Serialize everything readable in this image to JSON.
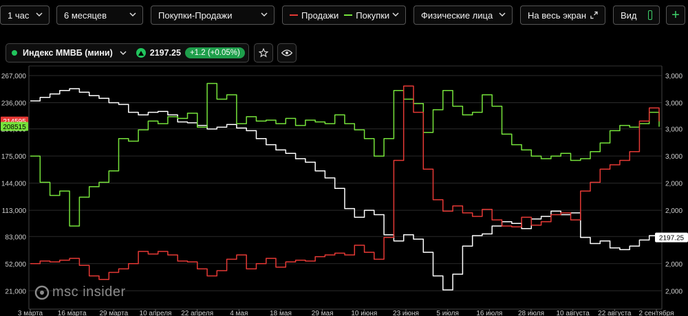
{
  "toolbar": {
    "interval": "1 час",
    "period": "6 месяцев",
    "mode": "Покупки-Продажи",
    "legend_sell": "Продажи",
    "legend_buy": "Покупки",
    "group": "Физические лица",
    "fullscreen": "На весь экран",
    "view": "Вид",
    "add": "+"
  },
  "ticker": {
    "name": "Индекс ММВБ (мини)",
    "price": "2197.25",
    "change": "+1.2 (+0.05%)"
  },
  "watermark": "msc insider",
  "colors": {
    "sell": "#e53935",
    "buy": "#76e33b",
    "index": "#ffffff",
    "positive": "#21c55d"
  },
  "chart_data": {
    "type": "line",
    "x_labels": [
      "3 марта",
      "16 марта",
      "29 марта",
      "10 апреля",
      "22 апреля",
      "4 мая",
      "18 мая",
      "29 мая",
      "10 июня",
      "23 июня",
      "5 июля",
      "16 июля",
      "28 июля",
      "10 августа",
      "22 августа",
      "2 сентября"
    ],
    "left_axis": {
      "ticks": [
        "267,000",
        "236,000",
        "206,000",
        "175,000",
        "144,000",
        "113,000",
        "83,000",
        "52,000",
        "21,000"
      ],
      "range": [
        0,
        278000
      ]
    },
    "right_axis": {
      "ticks": [
        "3,000",
        "3,000",
        "3,000",
        "3,000",
        "2,000",
        "2,000",
        "2,000",
        "2,000",
        "2,000"
      ]
    },
    "markers": {
      "sell": "214595",
      "buy": "208515",
      "index": "2197.25"
    },
    "series": [
      {
        "name": "Продажи",
        "color": "#e53935",
        "values": [
          52000,
          55000,
          54000,
          56000,
          58000,
          50000,
          38000,
          34000,
          42000,
          46000,
          52000,
          66000,
          63000,
          66000,
          62000,
          55000,
          54000,
          46000,
          38000,
          44000,
          57000,
          62000,
          46000,
          52000,
          58000,
          48000,
          54000,
          56000,
          55000,
          60000,
          62000,
          64000,
          62000,
          73000,
          65000,
          57000,
          82000,
          170000,
          255000,
          225000,
          160000,
          125000,
          112000,
          118000,
          110000,
          106000,
          114000,
          102000,
          95000,
          94000,
          105000,
          96000,
          100000,
          108000,
          110000,
          102000,
          135000,
          145000,
          160000,
          165000,
          170000,
          180000,
          215000,
          230000,
          214595
        ]
      },
      {
        "name": "Покупки",
        "color": "#76e33b",
        "values": [
          175000,
          145000,
          130000,
          135000,
          95000,
          128000,
          140000,
          145000,
          158000,
          195000,
          192000,
          205000,
          215000,
          212000,
          220000,
          218000,
          224000,
          208000,
          258000,
          240000,
          245000,
          212000,
          220000,
          215000,
          216000,
          212000,
          218000,
          210000,
          216000,
          214000,
          212000,
          222000,
          212000,
          205000,
          195000,
          175000,
          195000,
          250000,
          240000,
          235000,
          202000,
          228000,
          250000,
          232000,
          222000,
          225000,
          245000,
          232000,
          200000,
          188000,
          182000,
          175000,
          172000,
          175000,
          178000,
          170000,
          172000,
          180000,
          190000,
          204000,
          210000,
          208000,
          212000,
          225000,
          208515
        ]
      },
      {
        "name": "Индекс ММВБ (мини)",
        "color": "#ffffff",
        "values": [
          238000,
          242000,
          246000,
          250000,
          252000,
          248000,
          244000,
          241000,
          236000,
          234000,
          225000,
          222000,
          225000,
          226000,
          222000,
          214000,
          213000,
          210000,
          206000,
          208000,
          211000,
          207000,
          204000,
          195000,
          188000,
          182000,
          178000,
          172000,
          168000,
          158000,
          150000,
          138000,
          115000,
          105000,
          113000,
          108000,
          85000,
          78000,
          85000,
          80000,
          65000,
          38000,
          22000,
          40000,
          72000,
          84000,
          86000,
          95000,
          100000,
          98000,
          92000,
          103000,
          106000,
          112000,
          108000,
          110000,
          82000,
          75000,
          78000,
          70000,
          68000,
          72000,
          79000,
          84000,
          82000
        ]
      }
    ]
  }
}
